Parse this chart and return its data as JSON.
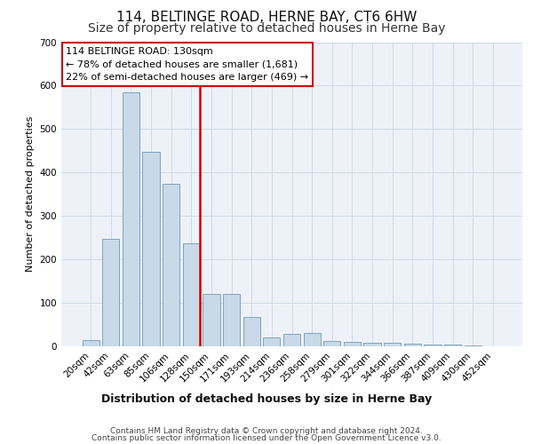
{
  "title": "114, BELTINGE ROAD, HERNE BAY, CT6 6HW",
  "subtitle": "Size of property relative to detached houses in Herne Bay",
  "xlabel": "Distribution of detached houses by size in Herne Bay",
  "ylabel": "Number of detached properties",
  "categories": [
    "20sqm",
    "42sqm",
    "63sqm",
    "85sqm",
    "106sqm",
    "128sqm",
    "150sqm",
    "171sqm",
    "193sqm",
    "214sqm",
    "236sqm",
    "258sqm",
    "279sqm",
    "301sqm",
    "322sqm",
    "344sqm",
    "366sqm",
    "387sqm",
    "409sqm",
    "430sqm",
    "452sqm"
  ],
  "values": [
    15,
    248,
    585,
    448,
    375,
    238,
    120,
    120,
    68,
    20,
    28,
    30,
    12,
    10,
    8,
    8,
    6,
    4,
    5,
    2,
    1
  ],
  "bar_color": "#c9d9e8",
  "bar_edge_color": "#7098b8",
  "bar_width": 0.85,
  "red_line_index": 5,
  "red_line_color": "#cc0000",
  "annotation_text": "114 BELTINGE ROAD: 130sqm\n← 78% of detached houses are smaller (1,681)\n22% of semi-detached houses are larger (469) →",
  "annotation_box_color": "#ffffff",
  "annotation_box_edge": "#cc0000",
  "ylim": [
    0,
    700
  ],
  "yticks": [
    0,
    100,
    200,
    300,
    400,
    500,
    600,
    700
  ],
  "grid_color": "#d0d8e8",
  "background_color": "#eef2f8",
  "footer_line1": "Contains HM Land Registry data © Crown copyright and database right 2024.",
  "footer_line2": "Contains public sector information licensed under the Open Government Licence v3.0.",
  "title_fontsize": 11,
  "subtitle_fontsize": 10,
  "xlabel_fontsize": 9,
  "ylabel_fontsize": 8,
  "tick_fontsize": 7.5,
  "annotation_fontsize": 8,
  "footer_fontsize": 6.5
}
